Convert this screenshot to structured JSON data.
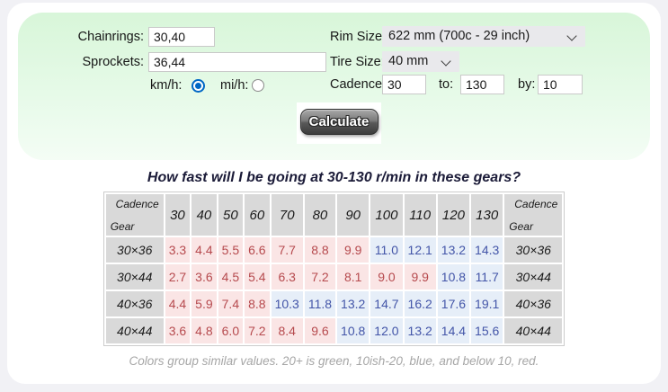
{
  "form": {
    "chainrings": {
      "label": "Chainrings:",
      "value": "30,40"
    },
    "sprockets": {
      "label": "Sprockets:",
      "value": "36,44"
    },
    "units": {
      "kmh_label": "km/h:",
      "mih_label": "mi/h:",
      "selected": "km/h"
    },
    "rim_size": {
      "label": "Rim Size:",
      "value": "622 mm (700c - 29 inch)"
    },
    "tire_size": {
      "label": "Tire Size:",
      "value": "40 mm"
    },
    "cadence": {
      "label": "Cadence:",
      "from": "30",
      "to_label": "to:",
      "to": "130",
      "by_label": "by:",
      "by": "10"
    },
    "calculate_label": "Calculate"
  },
  "results": {
    "title": "How fast will I be going at 30-130 r/min in these gears?",
    "corner_top": "Cadence",
    "corner_bottom": "Gear",
    "caption": "Colors group similar values. 20+ is green, 10ish-20, blue, and below 10, red."
  },
  "chart_data": {
    "type": "table",
    "unit": "km/h",
    "cadence_columns": [
      30,
      40,
      50,
      60,
      70,
      80,
      90,
      100,
      110,
      120,
      130
    ],
    "rows": [
      {
        "gear": "30×36",
        "values": [
          3.3,
          4.4,
          5.5,
          6.6,
          7.7,
          8.8,
          9.9,
          11.0,
          12.1,
          13.2,
          14.3
        ]
      },
      {
        "gear": "30×44",
        "values": [
          2.7,
          3.6,
          4.5,
          5.4,
          6.3,
          7.2,
          8.1,
          9.0,
          9.9,
          10.8,
          11.7
        ]
      },
      {
        "gear": "40×36",
        "values": [
          4.4,
          5.9,
          7.4,
          8.8,
          10.3,
          11.8,
          13.2,
          14.7,
          16.2,
          17.6,
          19.1
        ]
      },
      {
        "gear": "40×44",
        "values": [
          3.6,
          4.8,
          6.0,
          7.2,
          8.4,
          9.6,
          10.8,
          12.0,
          13.2,
          14.4,
          15.6
        ]
      }
    ],
    "color_rule": {
      "below_10": "red",
      "10_to_20": "blue",
      "20_plus": "green"
    }
  },
  "colors": {
    "red_text": "#b64a4e",
    "red_bg": "#fae5e5",
    "blue_text": "#4355a8",
    "blue_bg": "#e6eef8",
    "green_text": "#3c7a3c",
    "green_bg": "#e3f3e3",
    "header_bg": "#d9d9d9",
    "radio_accent": "#0067c4"
  }
}
